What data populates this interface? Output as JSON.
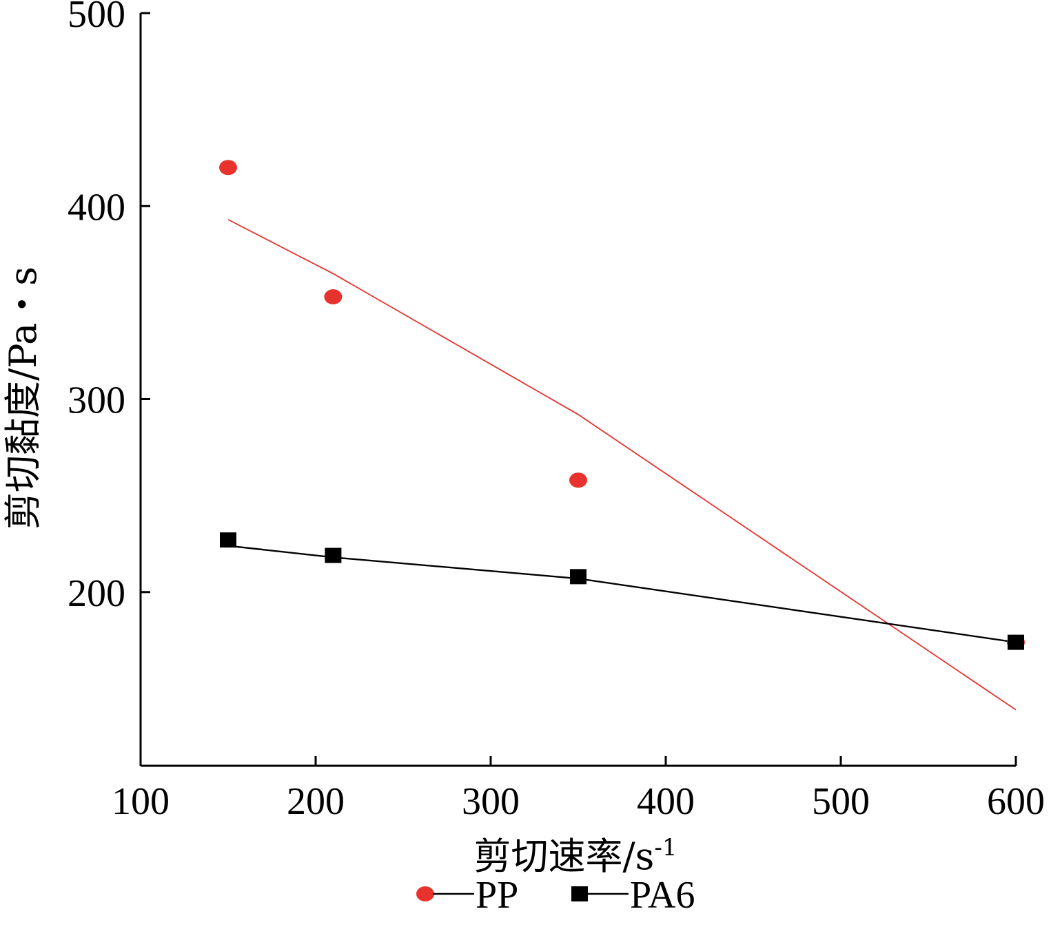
{
  "chart_data": {
    "type": "scatter",
    "xlabel": "剪切速率/s",
    "xlabel_superscript": "-1",
    "ylabel": "剪切黏度/Pa・s",
    "xlim": [
      100,
      600
    ],
    "ylim": [
      110,
      500
    ],
    "x_ticks": [
      100,
      200,
      300,
      400,
      500,
      600
    ],
    "y_ticks": [
      200,
      300,
      400,
      500
    ],
    "legend_position": "bottom",
    "series": [
      {
        "name": "PP",
        "color": "#e8322d",
        "marker": "circle",
        "points": [
          {
            "x": 150,
            "y": 420
          },
          {
            "x": 210,
            "y": 353
          },
          {
            "x": 350,
            "y": 258
          },
          {
            "x": 600,
            "y": 174
          }
        ],
        "trend": [
          {
            "x": 150,
            "y": 393
          },
          {
            "x": 210,
            "y": 365
          },
          {
            "x": 350,
            "y": 292
          },
          {
            "x": 600,
            "y": 139
          }
        ]
      },
      {
        "name": "PA6",
        "color": "#000000",
        "marker": "square",
        "points": [
          {
            "x": 150,
            "y": 227
          },
          {
            "x": 210,
            "y": 219
          },
          {
            "x": 350,
            "y": 208
          },
          {
            "x": 600,
            "y": 174
          }
        ],
        "trend": [
          {
            "x": 150,
            "y": 224
          },
          {
            "x": 210,
            "y": 218
          },
          {
            "x": 350,
            "y": 207
          },
          {
            "x": 600,
            "y": 174
          }
        ]
      }
    ]
  }
}
